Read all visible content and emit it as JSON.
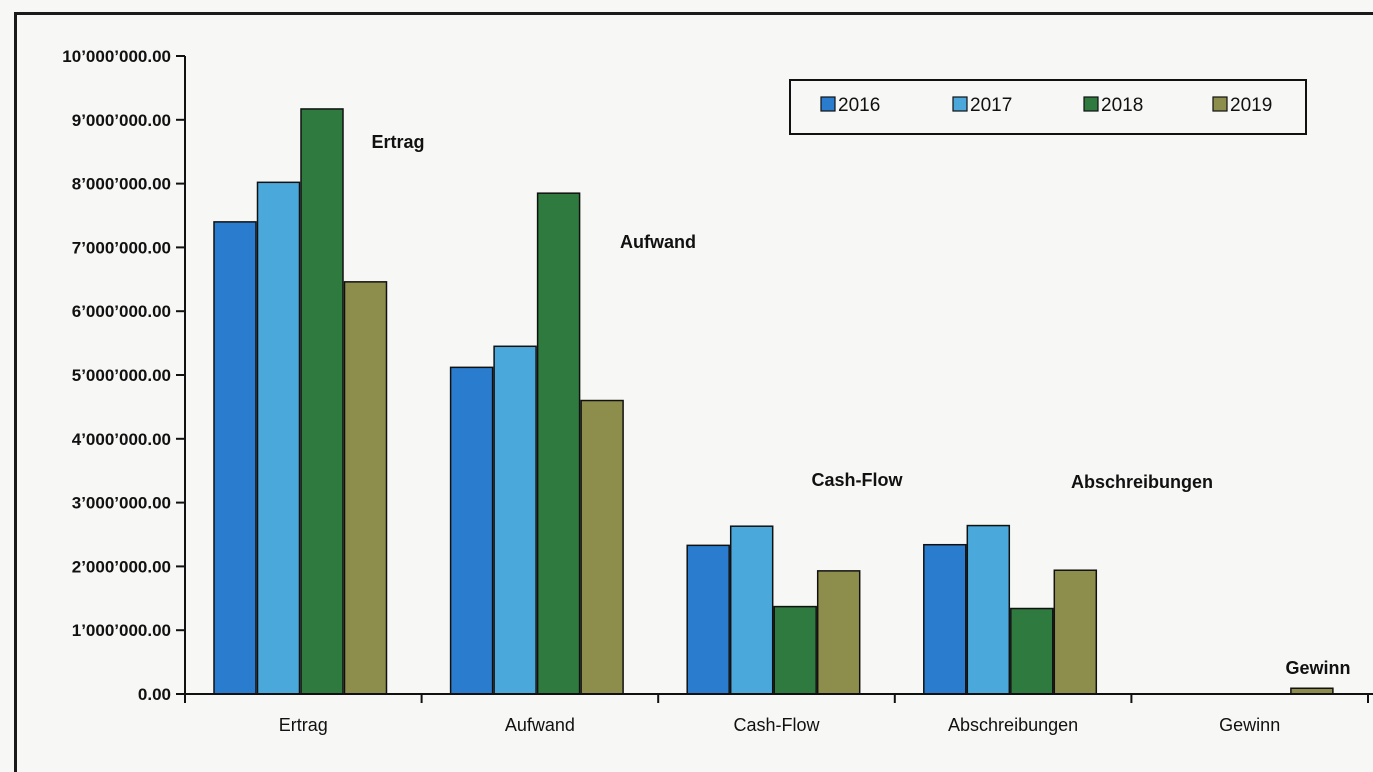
{
  "chart_data": {
    "type": "bar",
    "categories": [
      "Ertrag",
      "Aufwand",
      "Cash-Flow",
      "Abschreibungen",
      "Gewinn"
    ],
    "series": [
      {
        "name": "2016",
        "color": "#2a7ccf",
        "values": [
          7400000,
          5120000,
          2330000,
          2340000,
          0
        ]
      },
      {
        "name": "2017",
        "color": "#4aa8db",
        "values": [
          8020000,
          5450000,
          2630000,
          2640000,
          0
        ]
      },
      {
        "name": "2018",
        "color": "#2f7a3f",
        "values": [
          9170000,
          7850000,
          1370000,
          1340000,
          0
        ]
      },
      {
        "name": "2019",
        "color": "#8e8e4c",
        "values": [
          6460000,
          4600000,
          1930000,
          1940000,
          90000
        ]
      }
    ],
    "ylim": [
      0,
      10000000
    ],
    "yticks": [
      "0.00",
      "1’000’000.00",
      "2’000’000.00",
      "3’000’000.00",
      "4’000’000.00",
      "5’000’000.00",
      "6’000’000.00",
      "7’000’000.00",
      "8’000’000.00",
      "9’000’000.00",
      "10’000’000.00"
    ],
    "annotations": [
      "Ertrag",
      "Aufwand",
      "Cash-Flow",
      "Abschreibungen",
      "Gewinn"
    ],
    "legend_position": "top-right",
    "grid": false
  }
}
